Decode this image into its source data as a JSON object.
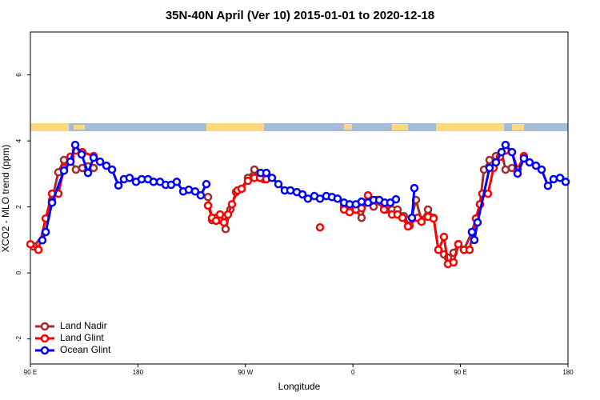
{
  "chart_data": {
    "type": "line",
    "title": "35N-40N April (Ver 10)   2015-01-01 to 2020-12-18",
    "x_label": "Longitude",
    "y_label": "XCO2 - MLO trend (ppm)",
    "xlim": [
      90,
      540
    ],
    "ylim": [
      -2.76,
      7.3
    ],
    "xticks": [
      {
        "value": 90,
        "label": "90 E"
      },
      180,
      {
        "value": 270,
        "label": "90 W"
      },
      {
        "value": 360,
        "label": "0"
      },
      {
        "value": 450,
        "label": "90 E"
      },
      {
        "value": 540,
        "label": "180"
      }
    ],
    "yticks": [
      -2,
      0,
      2,
      4,
      6
    ],
    "legend": "bottom-left",
    "series": [
      {
        "name": "Land Nadir",
        "color": "#a52a2a",
        "x": [
          92.7,
          102.8,
          108.1,
          113.4,
          118.1,
          123.5,
          128.1,
          133.5,
          138.2,
          142.9,
          null,
          238.7,
          242.1,
          245.4,
          248.7,
          253.4,
          257.4,
          262.1,
          266.8,
          272.1,
          277.5,
          280.2,
          285.5,
          null,
          352.5,
          357.2,
          362.5,
          367.2,
          372.6,
          377.3,
          382.6,
          387.3,
          392.7,
          397.3,
          402.7,
          407.4,
          412.7,
          417.4,
          422.8,
          427.5,
          431.5,
          436.2,
          439.5,
          444.2,
          448.2,
          452.9,
          459.6,
          466.3,
          469.7,
          474.3,
          479.7,
          484.4,
          487.7,
          493.1,
          497.8,
          503.1
        ],
        "values": [
          0.8,
          1.24,
          2.21,
          3.05,
          3.42,
          3.42,
          3.13,
          3.18,
          3.23,
          3.18,
          null,
          2.3,
          1.6,
          1.67,
          1.6,
          1.33,
          1.92,
          2.45,
          2.55,
          2.88,
          3.13,
          2.93,
          2.84,
          null,
          2.01,
          1.92,
          1.92,
          1.67,
          2.35,
          2.01,
          2.16,
          1.92,
          1.92,
          1.92,
          1.72,
          1.43,
          2.21,
          1.6,
          1.92,
          1.67,
          0.7,
          0.56,
          0.46,
          0.61,
          0.87,
          0.7,
          1.24,
          2.08,
          3.13,
          3.42,
          3.54,
          3.66,
          3.13,
          3.18,
          3.13,
          3.52
        ]
      },
      {
        "name": "Land Glint",
        "color": "#ff0000",
        "x": [
          90.0,
          96.7,
          102.8,
          108.1,
          113.4,
          118.1,
          123.5,
          128.1,
          133.5,
          142.9,
          null,
          238.7,
          242.1,
          245.4,
          248.7,
          252.0,
          255.4,
          258.7,
          263.4,
          266.8,
          272.1,
          277.5,
          282.2,
          287.5,
          null,
          332.4,
          null,
          352.5,
          357.2,
          362.5,
          367.2,
          372.6,
          379.3,
          386.0,
          392.7,
          397.3,
          401.4,
          406.0,
          414.1,
          417.4,
          422.8,
          427.5,
          431.5,
          436.2,
          439.5,
          444.2,
          448.2,
          452.9,
          457.6,
          462.9,
          466.3,
          468.3,
          473.0,
          477.7,
          483.1,
          487.7,
          493.1,
          497.8,
          503.1
        ],
        "values": [
          0.87,
          0.7,
          1.65,
          2.4,
          2.4,
          3.18,
          3.52,
          3.71,
          3.66,
          3.54,
          null,
          2.04,
          1.67,
          1.58,
          1.77,
          1.53,
          1.77,
          2.08,
          2.5,
          2.55,
          2.79,
          2.88,
          2.88,
          2.84,
          null,
          1.38,
          null,
          1.92,
          1.84,
          1.92,
          1.96,
          2.35,
          2.21,
          1.92,
          1.77,
          1.77,
          1.67,
          1.41,
          1.67,
          1.55,
          1.7,
          1.65,
          0.7,
          1.09,
          0.27,
          0.32,
          0.87,
          0.7,
          0.7,
          1.65,
          2.08,
          2.4,
          2.4,
          3.18,
          3.52,
          3.71,
          3.66,
          3.13,
          3.54
        ]
      },
      {
        "name": "Ocean Glint",
        "color": "#0000ff",
        "x": [
          100.0,
          102.8,
          108.1,
          118.1,
          123.5,
          127.5,
          132.9,
          138.2,
          142.9,
          148.3,
          153.6,
          158.3,
          163.7,
          168.3,
          173.0,
          178.4,
          183.1,
          188.4,
          193.1,
          198.5,
          203.2,
          207.8,
          212.5,
          217.9,
          222.6,
          227.9,
          232.6,
          237.3,
          null,
          282.8,
          287.5,
          292.2,
          297.6,
          302.9,
          307.6,
          313.0,
          317.7,
          322.3,
          327.7,
          332.4,
          337.7,
          342.4,
          347.1,
          352.5,
          357.2,
          362.5,
          367.2,
          372.6,
          377.3,
          382.0,
          386.6,
          391.3,
          396.0,
          null,
          409.4,
          411.4,
          null,
          459.6,
          461.6,
          464.3,
          474.3,
          479.7,
          484.4,
          487.7,
          493.1,
          497.8,
          503.1,
          507.8,
          513.2,
          517.9,
          523.2,
          527.9,
          533.3,
          538.0
        ],
        "values": [
          0.99,
          1.24,
          2.13,
          3.1,
          3.37,
          3.88,
          3.59,
          3.03,
          3.49,
          3.37,
          3.25,
          3.13,
          2.65,
          2.84,
          2.88,
          2.76,
          2.84,
          2.84,
          2.76,
          2.76,
          2.67,
          2.67,
          2.76,
          2.47,
          2.52,
          2.47,
          2.35,
          2.69,
          null,
          3.03,
          3.03,
          2.88,
          2.69,
          2.5,
          2.5,
          2.45,
          2.38,
          2.25,
          2.33,
          2.25,
          2.33,
          2.3,
          2.25,
          2.13,
          2.08,
          2.08,
          2.16,
          2.13,
          2.21,
          2.21,
          2.13,
          2.13,
          2.23,
          null,
          1.67,
          2.57,
          null,
          1.24,
          1.0,
          1.53,
          3.18,
          3.35,
          3.66,
          3.88,
          3.66,
          3.01,
          3.47,
          3.35,
          3.25,
          3.13,
          2.64,
          2.84,
          2.88,
          2.76
        ]
      }
    ]
  }
}
